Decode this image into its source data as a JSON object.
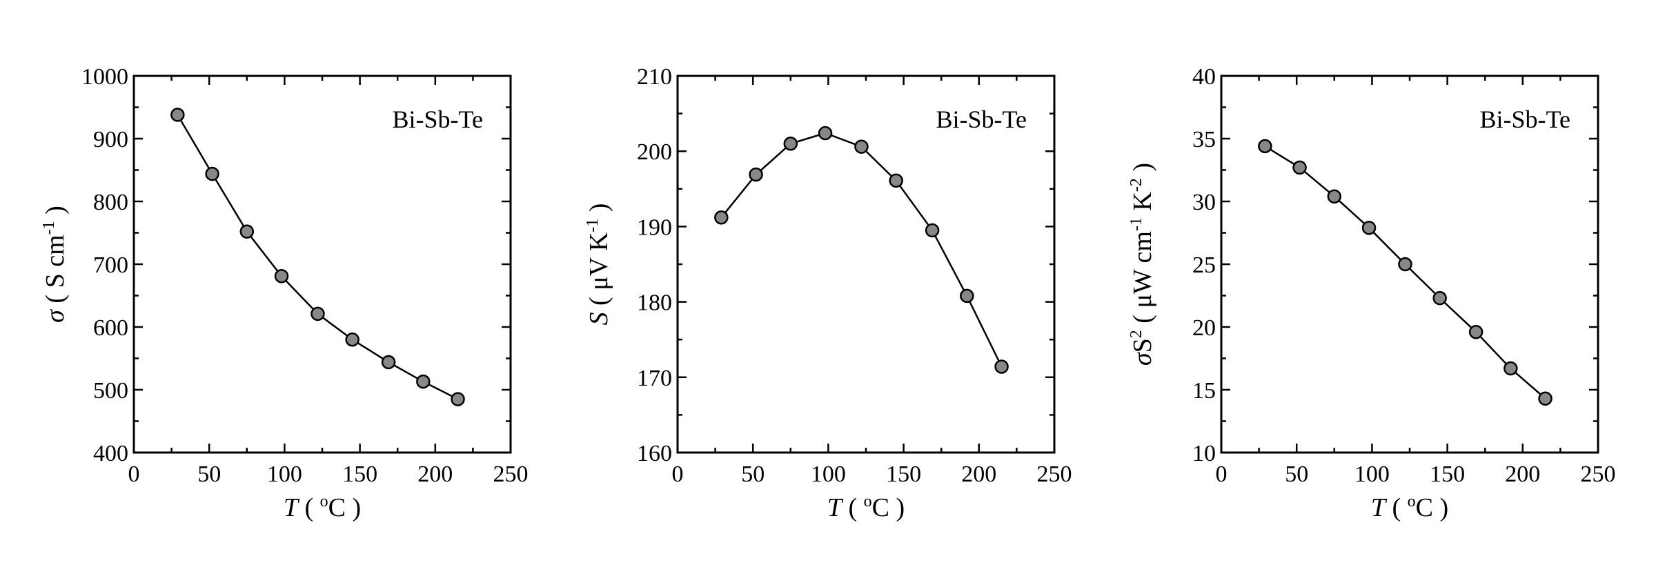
{
  "colors": {
    "marker_fill": "#888888",
    "line": "#000000",
    "axis": "#000000",
    "background": "#ffffff"
  },
  "chart_data": [
    {
      "type": "line",
      "title": "",
      "annotation": "Bi-Sb-Te",
      "annotation_position": "top-right",
      "grid": false,
      "legend": "none",
      "xlabel": {
        "symbol": "T",
        "text": " ( ",
        "sup": "o",
        "unit": "C )"
      },
      "ylabel": {
        "symbol": "σ",
        "text": " ( S cm",
        "sup": "-1",
        "end": " )"
      },
      "xlim": [
        0,
        250
      ],
      "ylim": [
        400,
        1000
      ],
      "xticks": [
        0,
        50,
        100,
        150,
        200,
        250
      ],
      "yticks": [
        400,
        500,
        600,
        700,
        800,
        900,
        1000
      ],
      "series": [
        {
          "x": [
            29,
            52,
            75,
            98,
            122,
            145,
            169,
            192,
            215
          ],
          "y": [
            938,
            844,
            752,
            681,
            621,
            580,
            544,
            513,
            485
          ]
        }
      ]
    },
    {
      "type": "line",
      "title": "",
      "annotation": "Bi-Sb-Te",
      "annotation_position": "top-right",
      "grid": false,
      "legend": "none",
      "xlabel": {
        "symbol": "T",
        "text": " ( ",
        "sup": "o",
        "unit": "C )"
      },
      "ylabel": {
        "symbol": "S",
        "text": " ( μV K",
        "sup": "-1",
        "end": " )"
      },
      "xlim": [
        0,
        250
      ],
      "ylim": [
        160,
        210
      ],
      "xticks": [
        0,
        50,
        100,
        150,
        200,
        250
      ],
      "yticks": [
        160,
        170,
        180,
        190,
        200,
        210
      ],
      "series": [
        {
          "x": [
            29,
            52,
            75,
            98,
            122,
            145,
            169,
            192,
            215
          ],
          "y": [
            191.2,
            196.9,
            201.0,
            202.4,
            200.6,
            196.1,
            189.5,
            180.8,
            171.4
          ]
        }
      ]
    },
    {
      "type": "line",
      "title": "",
      "annotation": "Bi-Sb-Te",
      "annotation_position": "top-right",
      "grid": false,
      "legend": "none",
      "xlabel": {
        "symbol": "T",
        "text": " ( ",
        "sup": "o",
        "unit": "C )"
      },
      "ylabel": {
        "symbol": "σS",
        "sup0": "2",
        "text": " ( μW cm",
        "sup": "-1",
        "mid": " K",
        "sup2": "-2",
        "end": " )"
      },
      "xlim": [
        0,
        250
      ],
      "ylim": [
        10,
        40
      ],
      "xticks": [
        0,
        50,
        100,
        150,
        200,
        250
      ],
      "yticks": [
        10,
        15,
        20,
        25,
        30,
        35,
        40
      ],
      "series": [
        {
          "x": [
            29,
            52,
            75,
            98,
            122,
            145,
            169,
            192,
            215
          ],
          "y": [
            34.4,
            32.7,
            30.4,
            27.9,
            25.0,
            22.3,
            19.6,
            16.7,
            14.3
          ]
        }
      ]
    }
  ]
}
